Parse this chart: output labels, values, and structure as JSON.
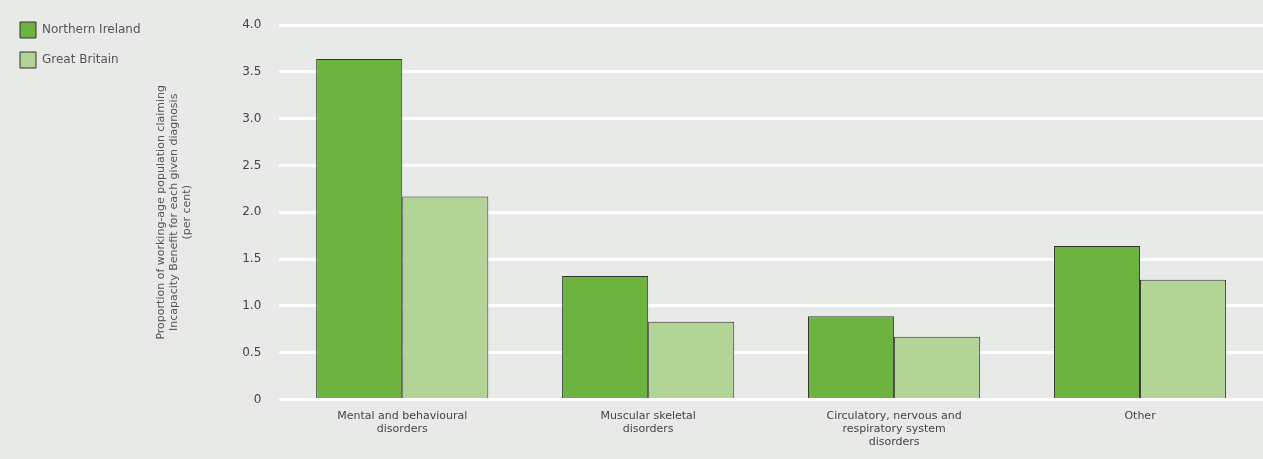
{
  "chart_data": {
    "type": "bar",
    "ylabel": "Proportion of working-age population claiming Incapacity Benefit for each given diagnosis (per cent)",
    "categories": [
      "Mental and behavioural disorders",
      "Muscular skeletal disorders",
      "Circulatory, nervous and respiratory system disorders",
      "Other"
    ],
    "series": [
      {
        "name": "Northern Ireland",
        "color": "#6db33f",
        "values": [
          3.64,
          1.32,
          0.89,
          1.64
        ]
      },
      {
        "name": "Great Britain",
        "color": "#b2d496",
        "values": [
          2.17,
          0.83,
          0.67,
          1.28
        ]
      }
    ],
    "ylim": [
      0,
      4
    ],
    "yticks": [
      0,
      {
        "value": 0.5,
        "label": "0.5"
      },
      {
        "value": 1,
        "label": "1.0"
      },
      {
        "value": 1.5,
        "label": "1.5"
      },
      {
        "value": 2,
        "label": "2.0"
      },
      {
        "value": 2.5,
        "label": "2.5"
      },
      {
        "value": 3,
        "label": "3.0"
      },
      {
        "value": 3.5,
        "label": "3.5"
      },
      {
        "value": 4,
        "label": "4.0"
      }
    ],
    "grid": "y",
    "legend": "top left"
  }
}
